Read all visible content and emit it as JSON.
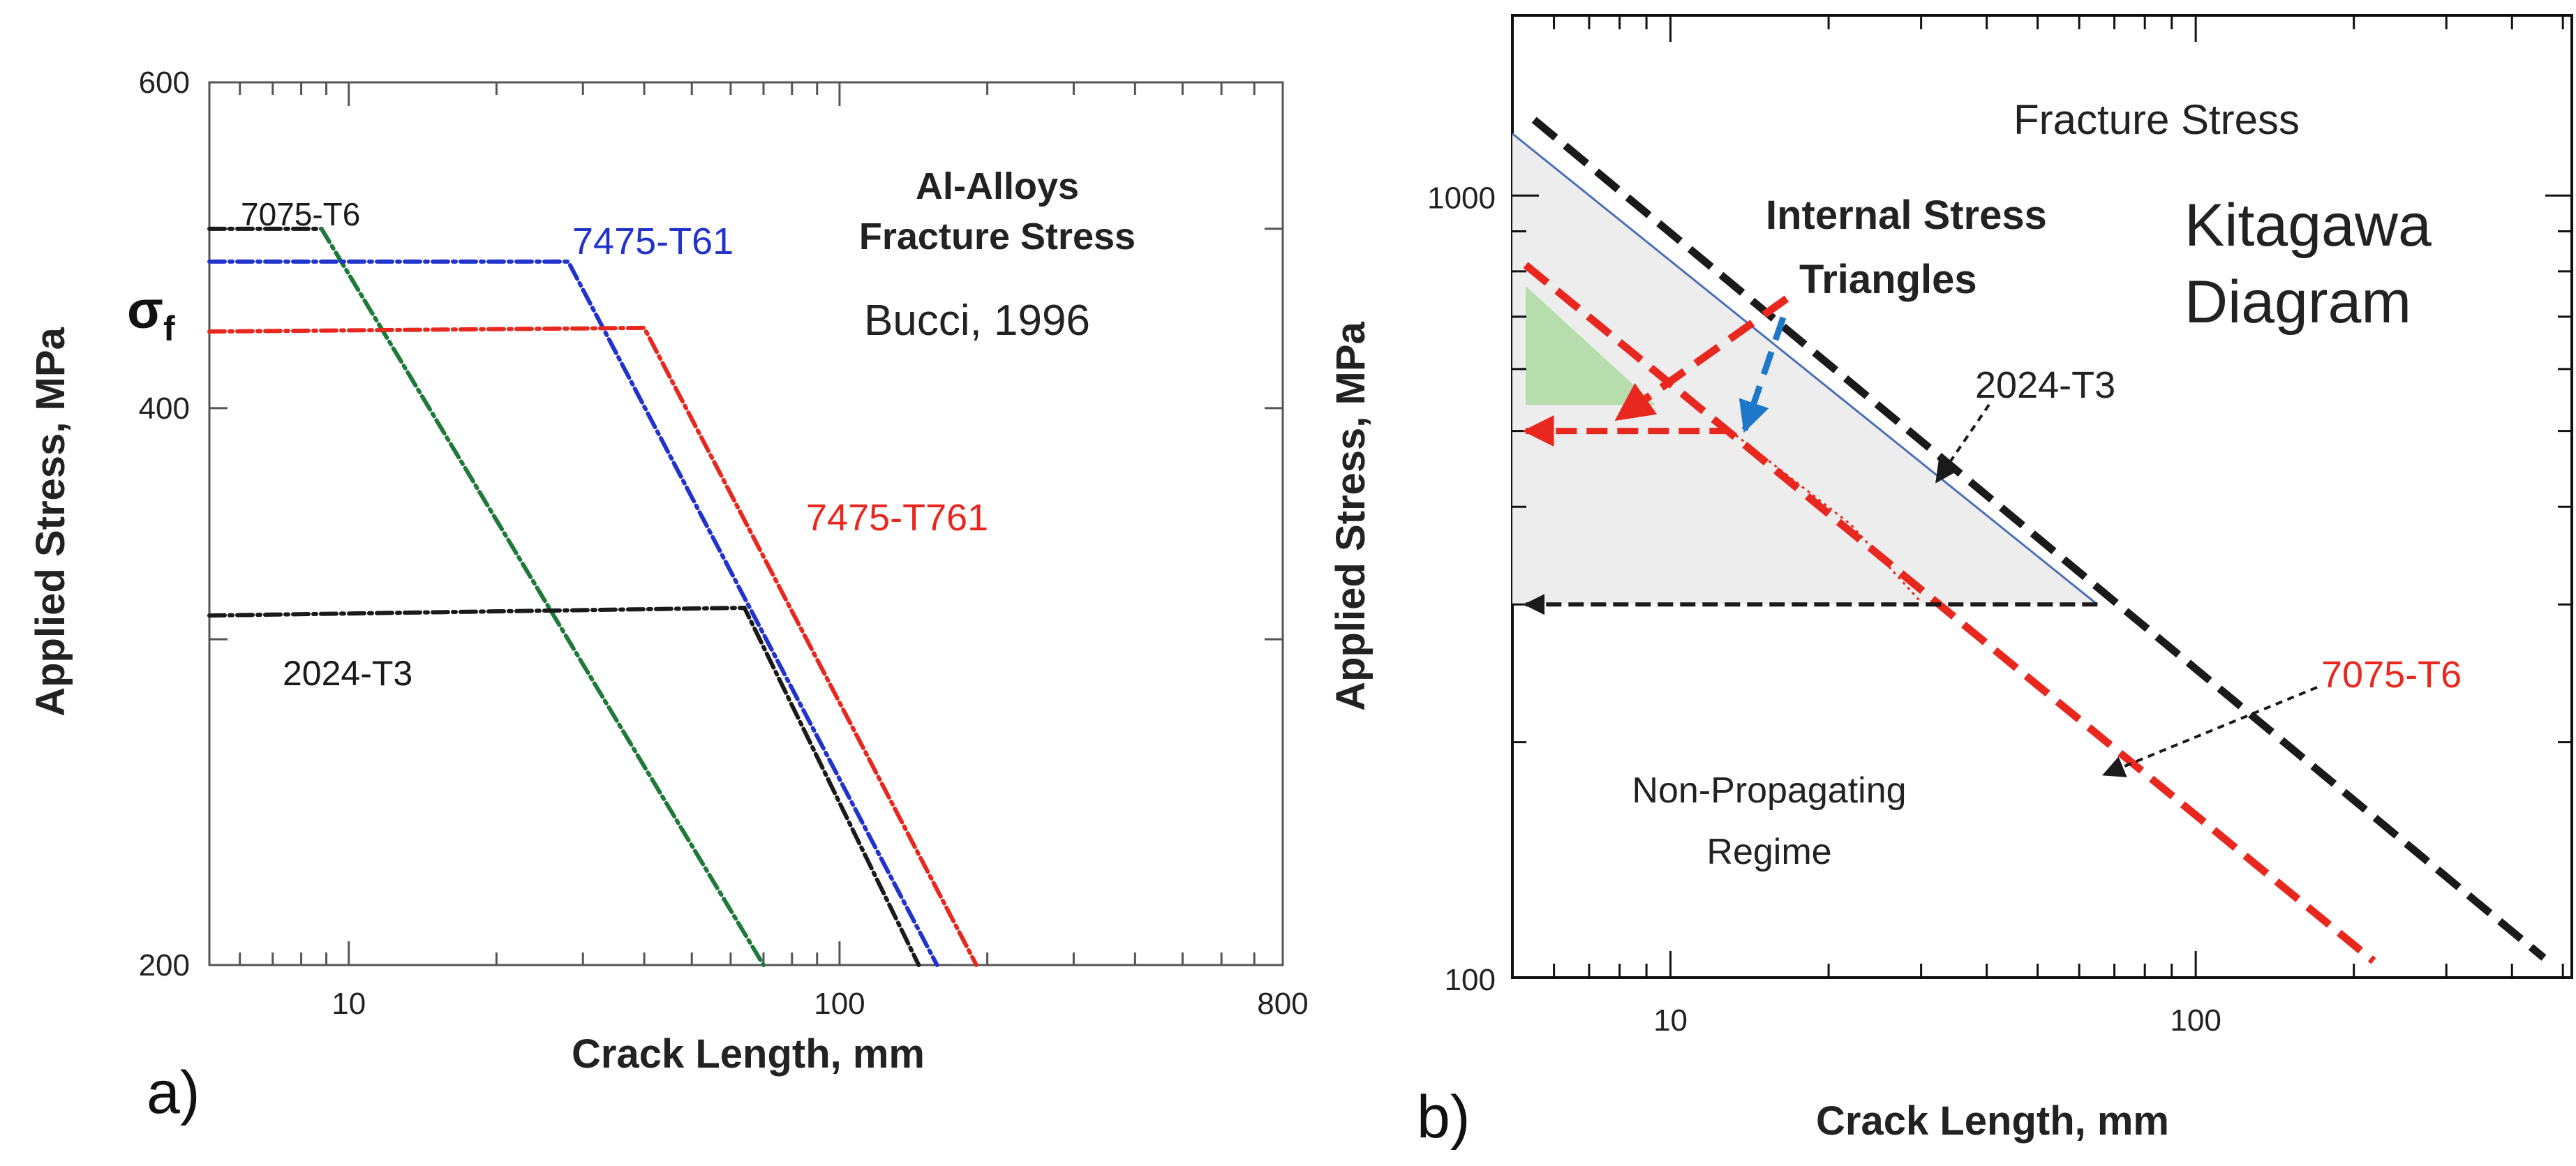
{
  "chart_data": [
    {
      "panel": "a)",
      "type": "line",
      "xscale": "log",
      "yscale": "log",
      "xlabel": "Crack Length, mm",
      "ylabel": "Applied Stress, MPa",
      "xlim": [
        5.2,
        800
      ],
      "ylim": [
        200,
        600
      ],
      "x_tick_labels": [
        {
          "value": 10,
          "label": "10"
        },
        {
          "value": 100,
          "label": "100"
        },
        {
          "value": 800,
          "label": "800"
        }
      ],
      "y_tick_labels": [
        {
          "value": 200,
          "label": "200"
        },
        {
          "value": 400,
          "label": "400"
        },
        {
          "value": 600,
          "label": "600"
        }
      ],
      "y_minor_ticks": [
        300,
        500
      ],
      "sigma_label": "σ",
      "sigma_sub": "f",
      "title_lines": [
        "Al-Alloys",
        "Fracture Stress"
      ],
      "source_note": "Bucci, 1996",
      "series": [
        {
          "name": "7075-T6",
          "color": "#1a1a1a",
          "points": [
            [
              5.2,
              500
            ],
            [
              8.8,
              500
            ]
          ]
        },
        {
          "name": "7075-T6 (fit)",
          "color": "#1f7a3a",
          "points": [
            [
              8.8,
              500
            ],
            [
              70,
              200
            ]
          ]
        },
        {
          "name": "7475-T61",
          "color": "#2233cc",
          "points": [
            [
              5.2,
              480
            ],
            [
              28,
              480
            ],
            [
              158,
              200
            ]
          ]
        },
        {
          "name": "7475-T761",
          "color": "#e8281e",
          "points": [
            [
              5.2,
              440
            ],
            [
              40,
              442
            ],
            [
              190,
              200
            ]
          ]
        },
        {
          "name": "2024-T3",
          "color": "#1a1a1a",
          "points": [
            [
              5.2,
              309
            ],
            [
              64,
              312
            ],
            [
              145,
              200
            ]
          ]
        }
      ],
      "annotations": [
        {
          "text": "7075-T6",
          "color": "#1a1a1a"
        },
        {
          "text": "7475-T61",
          "color": "#2233cc"
        },
        {
          "text": "7475-T761",
          "color": "#e8281e"
        },
        {
          "text": "2024-T3",
          "color": "#1a1a1a"
        }
      ]
    },
    {
      "panel": "b)",
      "type": "line",
      "xscale": "log",
      "yscale": "log",
      "xlabel": "Crack Length, mm",
      "ylabel": "Applied Stress, MPa",
      "xlim": [
        5,
        520
      ],
      "ylim": [
        100,
        1700
      ],
      "x_tick_labels": [
        {
          "value": 10,
          "label": "10"
        },
        {
          "value": 100,
          "label": "100"
        }
      ],
      "y_tick_labels": [
        {
          "value": 100,
          "label": "100"
        },
        {
          "value": 1000,
          "label": "1000"
        }
      ],
      "title": "Kitagawa Diagram",
      "title_lines": [
        "Kitagawa",
        "Diagram"
      ],
      "region_labels": [
        "Fracture Stress",
        "Non-Propagating",
        "Regime"
      ],
      "triangle_label": [
        "Internal Stress",
        "Triangles"
      ],
      "series": [
        {
          "name": "2024-T3",
          "color": "#1a1a1a",
          "points": [
            [
              5.5,
              1250
            ],
            [
              460,
              106
            ]
          ]
        },
        {
          "name": "7075-T6",
          "color": "#e8281e",
          "points": [
            [
              5.3,
              815
            ],
            [
              218,
              105
            ]
          ]
        },
        {
          "name": "Ideal threshold line",
          "color": "#4a70b8",
          "points": [
            [
              5,
              1200
            ],
            [
              65,
              300
            ]
          ]
        },
        {
          "name": "2024-T3 threshold",
          "color": "#1a1a1a",
          "points": [
            [
              65,
              300
            ],
            [
              5.3,
              300
            ]
          ]
        },
        {
          "name": "7075-T6 threshold",
          "color": "#e8281e",
          "points": [
            [
              13,
              500
            ],
            [
              5.3,
              500
            ]
          ]
        },
        {
          "name": "7075-T6 internal",
          "color": "#e8281e",
          "points": [
            [
              13,
              500
            ],
            [
              22,
              380
            ],
            [
              30,
              302
            ]
          ]
        }
      ],
      "annotations": [
        {
          "text": "2024-T3",
          "color": "#1a1a1a"
        },
        {
          "text": "7075-T6",
          "color": "#e8281e"
        }
      ]
    }
  ]
}
